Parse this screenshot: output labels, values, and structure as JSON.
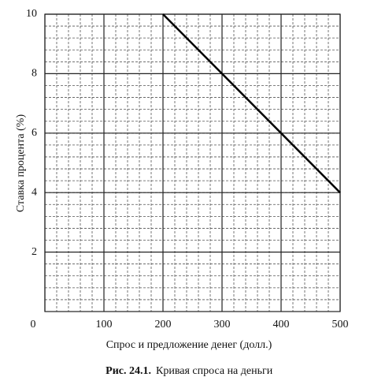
{
  "chart_data": {
    "type": "line",
    "figure_label": "Рис. 24.1.",
    "caption": "Кривая спроса на деньги",
    "xlabel": "Спрос и предложение денег (долл.)",
    "ylabel": "Ставка процента (%)",
    "x": [
      200,
      500
    ],
    "series": [
      {
        "values": [
          10,
          4
        ],
        "color": "#000000"
      }
    ],
    "xlim": [
      0,
      500
    ],
    "xticks": [
      0,
      100,
      200,
      300,
      400,
      500
    ],
    "ylim": [
      0,
      10
    ],
    "yticks": [
      2,
      4,
      6,
      8,
      10
    ],
    "grid": true
  }
}
